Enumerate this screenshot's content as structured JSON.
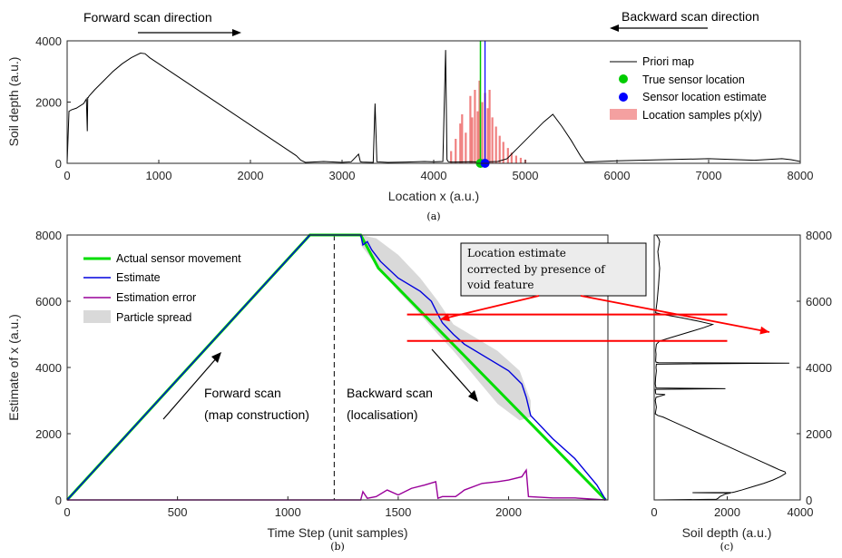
{
  "chart_data": [
    {
      "id": "a",
      "type": "line",
      "caption": "(a)",
      "xlabel": "Location x (a.u.)",
      "ylabel": "Soil depth (a.u.)",
      "xlim": [
        0,
        8000
      ],
      "ylim": [
        0,
        4000
      ],
      "xticks": [
        0,
        1000,
        2000,
        3000,
        4000,
        5000,
        6000,
        7000,
        8000
      ],
      "yticks": [
        0,
        2000,
        4000
      ],
      "annotations": {
        "forward": "Forward scan direction",
        "backward": "Backward scan direction"
      },
      "legend": {
        "position": "right",
        "entries": [
          "Priori map",
          "True sensor location",
          "Sensor location estimate",
          "Location samples p(x|y)"
        ]
      },
      "series": [
        {
          "name": "Priori map",
          "color": "#000000",
          "x": [
            0,
            20,
            50,
            100,
            180,
            210,
            220,
            225,
            230,
            240,
            300,
            400,
            500,
            600,
            700,
            800,
            850,
            900,
            1000,
            1100,
            1200,
            1400,
            1600,
            1800,
            2000,
            2200,
            2400,
            2500,
            2550,
            2600,
            2800,
            3000,
            3100,
            3180,
            3200,
            3220,
            3340,
            3360,
            3380,
            3500,
            3700,
            3900,
            4000,
            4100,
            4130,
            4145,
            4160,
            4200,
            4400,
            4520,
            4700,
            4800,
            4850,
            4900,
            5000,
            5100,
            5200,
            5300,
            5400,
            5500,
            5600,
            5650,
            6000,
            6500,
            7000,
            7500,
            7800,
            7900,
            8000
          ],
          "y": [
            0,
            1700,
            1750,
            1800,
            1950,
            2100,
            1050,
            2150,
            2150,
            2200,
            2400,
            2700,
            3000,
            3250,
            3450,
            3600,
            3580,
            3450,
            3250,
            3050,
            2850,
            2450,
            2050,
            1650,
            1250,
            850,
            450,
            250,
            100,
            30,
            60,
            30,
            50,
            300,
            50,
            40,
            30,
            1950,
            50,
            30,
            40,
            60,
            50,
            60,
            3700,
            120,
            50,
            40,
            50,
            40,
            60,
            150,
            300,
            450,
            750,
            1050,
            1350,
            1600,
            1200,
            750,
            250,
            40,
            80,
            120,
            150,
            100,
            150,
            120,
            60
          ]
        },
        {
          "name": "True sensor location",
          "color": "#00cc00",
          "x": 4510,
          "y": 0
        },
        {
          "name": "Sensor location estimate",
          "color": "#0000ff",
          "x": 4560,
          "y": 0
        },
        {
          "name": "Location samples p(x|y)",
          "color": "#f08080",
          "x": [
            4190,
            4240,
            4290,
            4310,
            4350,
            4400,
            4420,
            4450,
            4480,
            4500,
            4530,
            4560,
            4590,
            4610,
            4640,
            4680,
            4720,
            4760,
            4810,
            4850,
            4900,
            4950,
            5000
          ],
          "y": [
            400,
            800,
            1300,
            1600,
            1000,
            2200,
            1500,
            2400,
            1700,
            2700,
            2000,
            2300,
            1800,
            2400,
            1500,
            1200,
            900,
            700,
            500,
            350,
            250,
            180,
            120
          ]
        }
      ]
    },
    {
      "id": "b",
      "type": "line",
      "caption": "(b)",
      "xlabel": "Time Step (unit samples)",
      "ylabel": "Estimate of x  (a.u.)",
      "xlim": [
        0,
        2450
      ],
      "ylim": [
        0,
        8000
      ],
      "xticks": [
        0,
        500,
        1000,
        1500,
        2000
      ],
      "yticks": [
        0,
        2000,
        4000,
        6000,
        8000
      ],
      "annotations": {
        "forward": "Forward scan",
        "forward2": "(map construction)",
        "backward": "Backward scan",
        "backward2": "(localisation)",
        "callout1": "Location estimate",
        "callout2": "corrected by presence of",
        "callout3": "void feature"
      },
      "divider_x": 1210,
      "legend": {
        "position": "top-left",
        "entries": [
          "Actual sensor movement",
          "Estimate",
          "Estimation error",
          "Particle spread"
        ]
      },
      "series": [
        {
          "name": "Actual sensor movement",
          "color": "#00dd00",
          "x": [
            0,
            1100,
            1330,
            1410,
            2440
          ],
          "y": [
            0,
            8000,
            8000,
            7000,
            0
          ]
        },
        {
          "name": "Estimate",
          "color": "#0000dd",
          "x": [
            0,
            1100,
            1330,
            1340,
            1360,
            1380,
            1420,
            1500,
            1600,
            1650,
            1680,
            1700,
            1750,
            1800,
            1900,
            2000,
            2060,
            2080,
            2100,
            2200,
            2300,
            2400,
            2440
          ],
          "y": [
            0,
            8000,
            8000,
            7700,
            7800,
            7550,
            7200,
            6700,
            6300,
            6000,
            5600,
            5350,
            5000,
            4700,
            4300,
            3900,
            3500,
            3100,
            2550,
            1850,
            1250,
            450,
            0
          ]
        },
        {
          "name": "Estimation error",
          "color": "#990099",
          "x": [
            0,
            1330,
            1340,
            1360,
            1400,
            1450,
            1500,
            1560,
            1620,
            1670,
            1680,
            1700,
            1760,
            1800,
            1880,
            1950,
            2000,
            2060,
            2080,
            2090,
            2200,
            2300,
            2440
          ],
          "y": [
            0,
            0,
            250,
            50,
            100,
            300,
            150,
            350,
            450,
            550,
            50,
            100,
            100,
            300,
            500,
            550,
            600,
            700,
            900,
            100,
            60,
            60,
            0
          ]
        },
        {
          "name": "Particle spread",
          "color": "#d9d9d9",
          "x": [
            1330,
            1400,
            1500,
            1600,
            1680,
            1750,
            1850,
            1950,
            2050,
            2100
          ],
          "upper": [
            8000,
            7900,
            7400,
            6700,
            6000,
            5300,
            4900,
            4500,
            3900,
            3000
          ],
          "lower": [
            7700,
            7100,
            6300,
            5600,
            5000,
            4500,
            3700,
            2900,
            2400,
            2500
          ]
        }
      ]
    },
    {
      "id": "c",
      "type": "line",
      "caption": "(c)",
      "xlabel": "Soil depth (a.u.)",
      "xlim": [
        0,
        4000
      ],
      "ylim": [
        0,
        8000
      ],
      "xticks": [
        0,
        2000,
        4000
      ],
      "yticks": [
        0,
        2000,
        4000,
        6000,
        8000
      ],
      "series": [
        {
          "name": "Priori map",
          "color": "#000000",
          "x": [
            0,
            1700,
            1750,
            1800,
            1950,
            2100,
            1050,
            2150,
            2150,
            2200,
            2400,
            2700,
            3000,
            3250,
            3450,
            3600,
            3580,
            3450,
            3250,
            3050,
            2850,
            2450,
            2050,
            1650,
            1250,
            850,
            450,
            250,
            100,
            30,
            60,
            30,
            50,
            300,
            50,
            40,
            30,
            1950,
            50,
            30,
            40,
            60,
            50,
            60,
            3700,
            120,
            50,
            40,
            50,
            40,
            60,
            150,
            300,
            450,
            750,
            1050,
            1350,
            1600,
            1200,
            750,
            250,
            40,
            80,
            120,
            150,
            100,
            150,
            120,
            60
          ],
          "y": [
            0,
            20,
            50,
            100,
            180,
            210,
            220,
            225,
            230,
            240,
            300,
            400,
            500,
            600,
            700,
            800,
            850,
            900,
            1000,
            1100,
            1200,
            1400,
            1600,
            1800,
            2000,
            2200,
            2400,
            2500,
            2550,
            2600,
            2800,
            3000,
            3100,
            3180,
            3200,
            3220,
            3340,
            3360,
            3380,
            3500,
            3700,
            3900,
            4000,
            4100,
            4130,
            4145,
            4160,
            4200,
            4400,
            4520,
            4700,
            4800,
            4850,
            4900,
            5000,
            5100,
            5200,
            5300,
            5400,
            5500,
            5600,
            5650,
            6000,
            6500,
            7000,
            7500,
            7800,
            7900,
            8000
          ]
        }
      ],
      "reference_lines": {
        "color": "#ff0000",
        "values": [
          5600,
          4800
        ]
      }
    }
  ]
}
